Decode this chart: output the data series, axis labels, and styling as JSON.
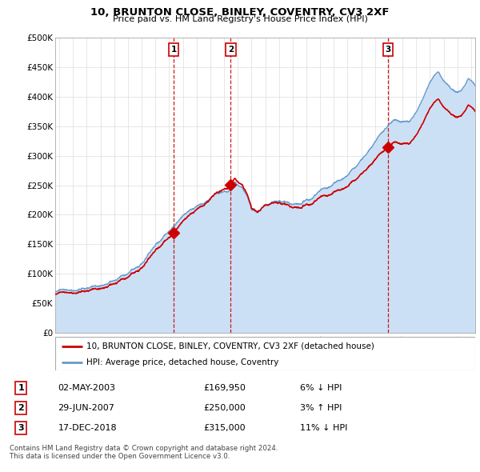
{
  "title": "10, BRUNTON CLOSE, BINLEY, COVENTRY, CV3 2XF",
  "subtitle": "Price paid vs. HM Land Registry's House Price Index (HPI)",
  "ylabel_ticks": [
    "£0",
    "£50K",
    "£100K",
    "£150K",
    "£200K",
    "£250K",
    "£300K",
    "£350K",
    "£400K",
    "£450K",
    "£500K"
  ],
  "ytick_values": [
    0,
    50000,
    100000,
    150000,
    200000,
    250000,
    300000,
    350000,
    400000,
    450000,
    500000
  ],
  "xlim_start": 1994.7,
  "xlim_end": 2025.3,
  "ylim": [
    0,
    500000
  ],
  "hpi_line_color": "#6699cc",
  "hpi_fill_color": "#cce0f5",
  "sale_color": "#cc0000",
  "sale_marker_color": "#cc0000",
  "vline_color": "#cc0000",
  "sales": [
    {
      "label": "1",
      "date_num": 2003.33,
      "price": 169950,
      "hpi_pct": "6% ↓ HPI",
      "date_str": "02-MAY-2003"
    },
    {
      "label": "2",
      "date_num": 2007.49,
      "price": 250000,
      "hpi_pct": "3% ↑ HPI",
      "date_str": "29-JUN-2007"
    },
    {
      "label": "3",
      "date_num": 2018.96,
      "price": 315000,
      "hpi_pct": "11% ↓ HPI",
      "date_str": "17-DEC-2018"
    }
  ],
  "legend_label_sale": "10, BRUNTON CLOSE, BINLEY, COVENTRY, CV3 2XF (detached house)",
  "legend_label_hpi": "HPI: Average price, detached house, Coventry",
  "footnote": "Contains HM Land Registry data © Crown copyright and database right 2024.\nThis data is licensed under the Open Government Licence v3.0.",
  "grid_color": "#dddddd",
  "background_color": "#ffffff"
}
